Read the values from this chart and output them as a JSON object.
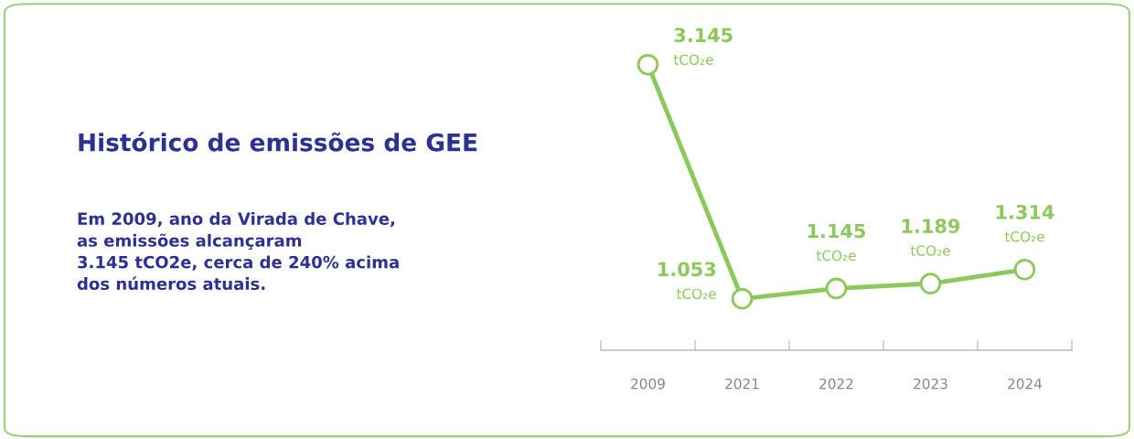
{
  "chart_data": {
    "type": "line",
    "title": "Histórico de emissões de GEE",
    "subtitle": "Em 2009, ano da Virada de Chave,\nas emissões alcançaram\n3.145 tCO2e, cerca de 240% acima\ndos números atuais.",
    "categories": [
      "2009",
      "2021",
      "2022",
      "2023",
      "2024"
    ],
    "series": [
      {
        "color": "#8cc85c",
        "values": [
          3145,
          1053,
          1145,
          1189,
          1314
        ],
        "value_labels": [
          "3.145\ntCO₂e",
          "1.053\ntCO₂e",
          "1.145\ntCO₂e",
          "1.189\ntCO₂e",
          "1.314\ntCO₂e"
        ]
      }
    ],
    "marker": "circle",
    "line_style": "solid",
    "grid": false
  }
}
